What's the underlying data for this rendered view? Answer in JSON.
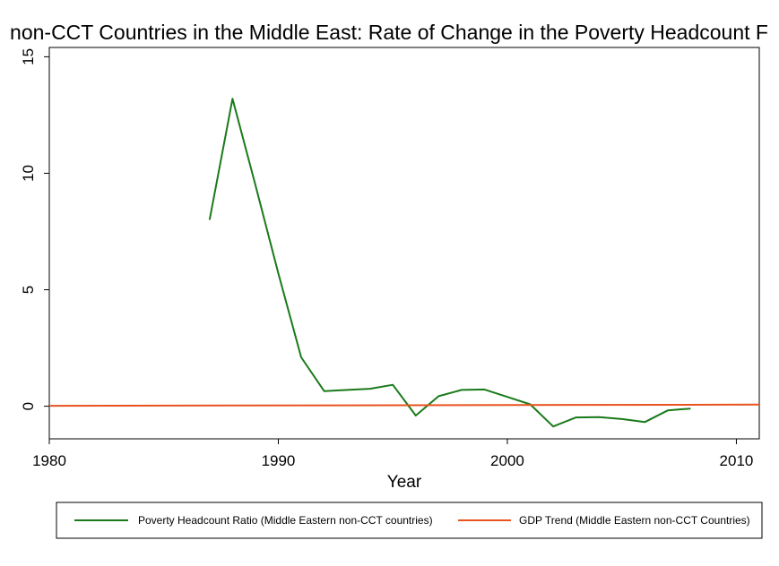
{
  "chart_data": {
    "type": "line",
    "title": "non-CCT Countries in the Middle East: Rate of Change in the Poverty Headcount F",
    "xlabel": "Year",
    "ylabel": "",
    "xlim": [
      1980,
      2011
    ],
    "ylim": [
      -1.4,
      15.4
    ],
    "x_ticks": [
      1980,
      1990,
      2000,
      2010
    ],
    "y_ticks": [
      0,
      5,
      10,
      15
    ],
    "grid": false,
    "legend_position": "bottom",
    "colors": {
      "poverty": "#1a7a1a",
      "gdp": "#e8531f"
    },
    "series": [
      {
        "name": "Poverty Headcount Ratio (Middle Eastern non-CCT countries)",
        "x": [
          1987,
          1988,
          1989,
          1990,
          1991,
          1992,
          1993,
          1994,
          1995,
          1996,
          1997,
          1998,
          1999,
          2000,
          2001,
          2002,
          2003,
          2004,
          2005,
          2006,
          2007,
          2008
        ],
        "y": [
          8.0,
          13.2,
          9.5,
          5.7,
          2.1,
          0.65,
          0.7,
          0.75,
          0.92,
          -0.4,
          0.43,
          0.7,
          0.72,
          0.4,
          0.08,
          -0.87,
          -0.48,
          -0.47,
          -0.55,
          -0.68,
          -0.18,
          -0.1
        ]
      },
      {
        "name": "GDP Trend (Middle Eastern non-CCT Countries)",
        "x": [
          1980,
          2011
        ],
        "y": [
          0.02,
          0.07
        ]
      }
    ]
  }
}
